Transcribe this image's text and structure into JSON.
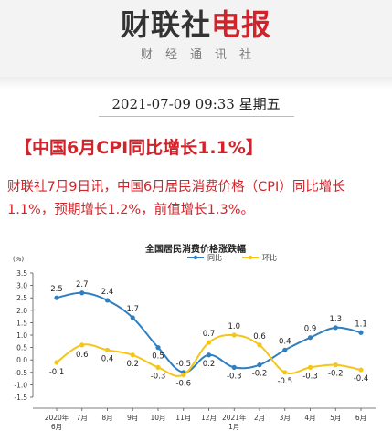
{
  "brand": {
    "name_part1": "财联社",
    "name_part2": "电报",
    "tagline": "财经通讯社"
  },
  "article": {
    "datetime": "2021-07-09 09:33 星期五",
    "headline": "【中国6月CPI同比增长1.1%】",
    "body": "财联社7月9日讯，中国6月居民消费价格（CPI）同比增长1.1%，预期增长1.2%，前值增长1.3%。"
  },
  "colors": {
    "accent": "#d2232a",
    "yoy": "#2f7fc1",
    "mom": "#f5c518"
  },
  "chart_data": {
    "type": "line",
    "title": "全国居民消费价格涨跌幅",
    "ylabel": "(%)",
    "ylim": [
      -1.5,
      3.5
    ],
    "yticks": [
      "3.5",
      "3.0",
      "2.5",
      "2.0",
      "1.5",
      "1.0",
      "0.5",
      "0.0",
      "-0.5",
      "-1.0",
      "-1.5"
    ],
    "categories": [
      [
        "2020年",
        "6月"
      ],
      [
        "7月"
      ],
      [
        "8月"
      ],
      [
        "9月"
      ],
      [
        "10月"
      ],
      [
        "11月"
      ],
      [
        "12月"
      ],
      [
        "2021年",
        "1月"
      ],
      [
        "2月"
      ],
      [
        "3月"
      ],
      [
        "4月"
      ],
      [
        "5月"
      ],
      [
        "6月"
      ]
    ],
    "legend_position": "top-right",
    "grid": false,
    "series": [
      {
        "name": "同比",
        "color": "#2f7fc1",
        "values": [
          2.5,
          2.7,
          2.4,
          1.7,
          0.5,
          -0.5,
          0.2,
          -0.3,
          -0.2,
          0.4,
          0.9,
          1.3,
          1.1
        ],
        "labels": [
          "2.5",
          "2.7",
          "2.4",
          "1.7",
          "0.5",
          "-0.5",
          "0.2",
          "-0.3",
          "-0.2",
          "0.4",
          "0.9",
          "1.3",
          "1.1"
        ]
      },
      {
        "name": "环比",
        "color": "#f5c518",
        "values": [
          -0.1,
          0.6,
          0.4,
          0.2,
          -0.3,
          -0.6,
          0.7,
          1.0,
          0.6,
          -0.5,
          -0.3,
          -0.2,
          -0.4
        ],
        "labels": [
          "-0.1",
          "0.6",
          "0.4",
          "0.2",
          "-0.3",
          "-0.6",
          "0.7",
          "1.0",
          "0.6",
          "-0.5",
          "-0.3",
          "-0.2",
          "-0.4"
        ]
      }
    ]
  }
}
